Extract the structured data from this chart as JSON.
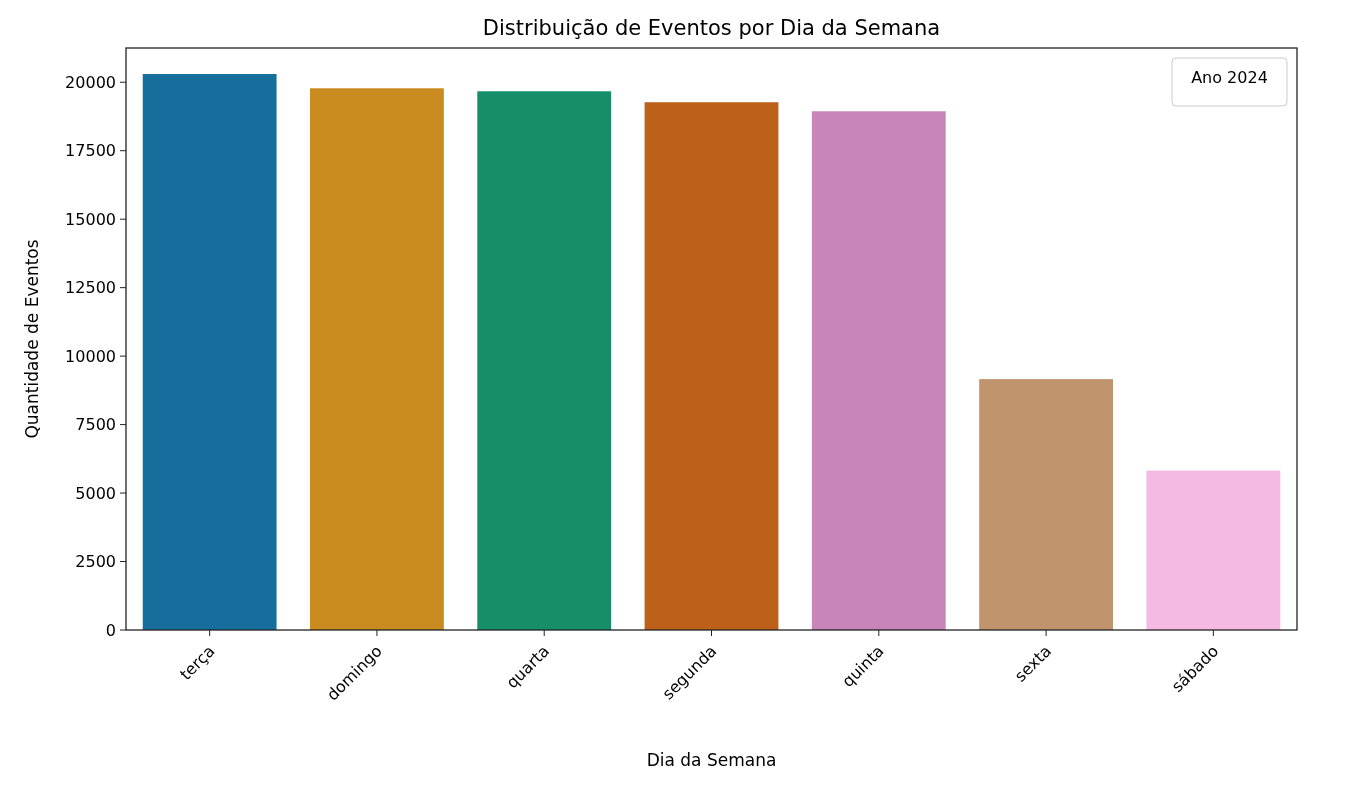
{
  "chart_data": {
    "type": "bar",
    "title": "Distribuição de Eventos por Dia da Semana",
    "xlabel": "Dia da Semana",
    "ylabel": "Quantidade de Eventos",
    "legend_title": "Ano 2024",
    "categories": [
      "terça",
      "domingo",
      "quarta",
      "segunda",
      "quinta",
      "sexta",
      "sábado"
    ],
    "values": [
      20300,
      19780,
      19670,
      19270,
      18940,
      9160,
      5820
    ],
    "colors": [
      "#176d9c",
      "#c98b20",
      "#168e6a",
      "#bd611a",
      "#c785ba",
      "#c0956d",
      "#f5bae4"
    ],
    "ylim": [
      0,
      21250
    ],
    "yticks": [
      0,
      2500,
      5000,
      7500,
      10000,
      12500,
      15000,
      17500,
      20000
    ],
    "grid": false
  }
}
